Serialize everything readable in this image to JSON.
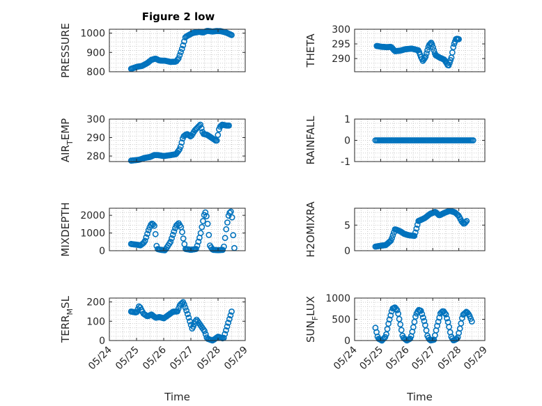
{
  "figure_title": "Figure 2 low",
  "colors": {
    "marker": "#0072BD",
    "grid": "#c9c9c9",
    "axis": "#262626"
  },
  "chart_data": [
    {
      "type": "scatter",
      "panel": "pressure",
      "ylabel": "PRESSURE",
      "xlabel": "",
      "xlim": [
        0,
        5
      ],
      "ylim": [
        800,
        1020
      ],
      "yticks": [
        800,
        900,
        1000
      ],
      "ytick_labels": [
        "800",
        "900",
        "1000"
      ],
      "grid": true,
      "x_tick_labels_shown": false,
      "keypoints": [
        [
          0.8,
          815
        ],
        [
          1.0,
          825
        ],
        [
          1.2,
          830
        ],
        [
          1.4,
          845
        ],
        [
          1.55,
          862
        ],
        [
          1.7,
          868
        ],
        [
          1.85,
          858
        ],
        [
          2.05,
          857
        ],
        [
          2.25,
          851
        ],
        [
          2.45,
          852
        ],
        [
          2.55,
          870
        ],
        [
          2.7,
          930
        ],
        [
          2.8,
          980
        ],
        [
          3.05,
          1000
        ],
        [
          3.3,
          1007
        ],
        [
          3.45,
          1003
        ],
        [
          3.6,
          1012
        ],
        [
          3.8,
          1008
        ],
        [
          3.95,
          1011
        ],
        [
          4.1,
          1010
        ],
        [
          4.3,
          1003
        ],
        [
          4.5,
          990
        ]
      ]
    },
    {
      "type": "scatter",
      "panel": "theta",
      "ylabel": "THETA",
      "xlabel": "",
      "xlim": [
        0,
        5
      ],
      "ylim": [
        285.5,
        300
      ],
      "yticks": [
        290,
        295,
        300
      ],
      "ytick_labels": [
        "290",
        "295",
        "300"
      ],
      "grid": true,
      "x_tick_labels_shown": false,
      "keypoints": [
        [
          0.85,
          294.3
        ],
        [
          1.05,
          294.0
        ],
        [
          1.25,
          293.9
        ],
        [
          1.4,
          294.0
        ],
        [
          1.55,
          292.5
        ],
        [
          1.75,
          292.7
        ],
        [
          1.95,
          293.2
        ],
        [
          2.2,
          293.4
        ],
        [
          2.45,
          292.8
        ],
        [
          2.55,
          290.5
        ],
        [
          2.62,
          289.2
        ],
        [
          2.72,
          290.5
        ],
        [
          2.85,
          294.5
        ],
        [
          2.95,
          295.5
        ],
        [
          3.1,
          291.2
        ],
        [
          3.25,
          290.4
        ],
        [
          3.45,
          289.6
        ],
        [
          3.6,
          287.4
        ],
        [
          3.72,
          290.4
        ],
        [
          3.8,
          294.5
        ],
        [
          3.9,
          296.8
        ],
        [
          4.0,
          296.6
        ]
      ]
    },
    {
      "type": "scatter",
      "panel": "air_temp",
      "ylabel": "AIR_TEMP",
      "xlabel": "",
      "xlim": [
        0,
        5
      ],
      "ylim": [
        277,
        300
      ],
      "yticks": [
        280,
        290,
        300
      ],
      "ytick_labels": [
        "280",
        "290",
        "300"
      ],
      "grid": true,
      "x_tick_labels_shown": false,
      "keypoints": [
        [
          0.8,
          277.5
        ],
        [
          1.1,
          278.0
        ],
        [
          1.3,
          279.0
        ],
        [
          1.5,
          279.5
        ],
        [
          1.65,
          280.5
        ],
        [
          1.8,
          280.5
        ],
        [
          2.0,
          280.0
        ],
        [
          2.25,
          280.5
        ],
        [
          2.45,
          281.0
        ],
        [
          2.6,
          284.0
        ],
        [
          2.72,
          290.5
        ],
        [
          2.85,
          292.0
        ],
        [
          3.0,
          290.5
        ],
        [
          3.15,
          294.0
        ],
        [
          3.35,
          297.0
        ],
        [
          3.45,
          292.0
        ],
        [
          3.6,
          291.5
        ],
        [
          3.75,
          290.0
        ],
        [
          3.95,
          288.0
        ],
        [
          4.05,
          295.5
        ],
        [
          4.15,
          297.0
        ],
        [
          4.3,
          296.5
        ],
        [
          4.4,
          296.5
        ]
      ]
    },
    {
      "type": "scatter",
      "panel": "rainfall",
      "ylabel": "RAINFALL",
      "xlabel": "",
      "xlim": [
        0,
        5
      ],
      "ylim": [
        -1,
        1
      ],
      "yticks": [
        -1,
        0,
        1
      ],
      "ytick_labels": [
        "-1",
        "0",
        "1"
      ],
      "grid": true,
      "x_tick_labels_shown": false,
      "keypoints": [
        [
          0.8,
          0
        ],
        [
          4.55,
          0
        ]
      ]
    },
    {
      "type": "scatter",
      "panel": "mixdepth",
      "ylabel": "MIXDEPTH",
      "xlabel": "",
      "xlim": [
        0,
        5
      ],
      "ylim": [
        0,
        2400
      ],
      "yticks": [
        0,
        1000,
        2000
      ],
      "ytick_labels": [
        "0",
        "1000",
        "2000"
      ],
      "grid": true,
      "x_tick_labels_shown": false,
      "keypoints": [
        [
          0.8,
          380
        ],
        [
          1.0,
          340
        ],
        [
          1.15,
          300
        ],
        [
          1.3,
          500
        ],
        [
          1.45,
          1200
        ],
        [
          1.55,
          1550
        ],
        [
          1.65,
          1450
        ],
        [
          1.7,
          900
        ],
        [
          1.75,
          100
        ],
        [
          1.9,
          50
        ],
        [
          2.05,
          20
        ],
        [
          2.25,
          500
        ],
        [
          2.45,
          1400
        ],
        [
          2.55,
          1550
        ],
        [
          2.65,
          1300
        ],
        [
          2.72,
          700
        ],
        [
          2.8,
          100
        ],
        [
          3.0,
          50
        ],
        [
          3.2,
          100
        ],
        [
          3.35,
          900
        ],
        [
          3.5,
          2100
        ],
        [
          3.55,
          2200
        ],
        [
          3.62,
          1500
        ],
        [
          3.7,
          300
        ],
        [
          3.8,
          50
        ],
        [
          4.0,
          30
        ],
        [
          4.2,
          50
        ],
        [
          4.3,
          1200
        ],
        [
          4.4,
          2100
        ],
        [
          4.5,
          2250
        ],
        [
          4.55,
          1000
        ],
        [
          4.6,
          150
        ]
      ]
    },
    {
      "type": "scatter",
      "panel": "h2omixra",
      "ylabel": "H2OMIXRA",
      "xlabel": "",
      "xlim": [
        0,
        5
      ],
      "ylim": [
        0,
        8.3
      ],
      "yticks": [
        0,
        5
      ],
      "ytick_labels": [
        "0",
        "5"
      ],
      "grid": true,
      "x_tick_labels_shown": false,
      "keypoints": [
        [
          0.8,
          0.8
        ],
        [
          1.05,
          1.0
        ],
        [
          1.2,
          1.1
        ],
        [
          1.4,
          2.0
        ],
        [
          1.55,
          4.2
        ],
        [
          1.75,
          3.8
        ],
        [
          1.9,
          3.3
        ],
        [
          2.1,
          3.0
        ],
        [
          2.3,
          2.9
        ],
        [
          2.45,
          5.8
        ],
        [
          2.7,
          6.4
        ],
        [
          2.9,
          7.2
        ],
        [
          3.1,
          7.6
        ],
        [
          3.25,
          6.9
        ],
        [
          3.45,
          7.4
        ],
        [
          3.65,
          7.8
        ],
        [
          3.85,
          7.5
        ],
        [
          4.0,
          6.8
        ],
        [
          4.1,
          5.8
        ],
        [
          4.2,
          5.2
        ],
        [
          4.3,
          5.8
        ]
      ]
    },
    {
      "type": "scatter",
      "panel": "terr_msl",
      "ylabel": "TERR_MSL",
      "xlabel": "Time",
      "xlim": [
        0,
        5
      ],
      "ylim": [
        0,
        220
      ],
      "yticks": [
        0,
        100,
        200
      ],
      "ytick_labels": [
        "0",
        "100",
        "200"
      ],
      "x_tick_labels": [
        "05/24",
        "05/25",
        "05/26",
        "05/27",
        "05/28",
        "05/29"
      ],
      "grid": true,
      "keypoints": [
        [
          0.8,
          150
        ],
        [
          1.0,
          145
        ],
        [
          1.1,
          180
        ],
        [
          1.25,
          140
        ],
        [
          1.4,
          125
        ],
        [
          1.55,
          135
        ],
        [
          1.7,
          118
        ],
        [
          1.85,
          122
        ],
        [
          2.0,
          115
        ],
        [
          2.15,
          130
        ],
        [
          2.35,
          150
        ],
        [
          2.5,
          150
        ],
        [
          2.6,
          185
        ],
        [
          2.72,
          200
        ],
        [
          2.85,
          150
        ],
        [
          3.05,
          60
        ],
        [
          3.2,
          110
        ],
        [
          3.35,
          80
        ],
        [
          3.5,
          50
        ],
        [
          3.6,
          10
        ],
        [
          3.8,
          0
        ],
        [
          4.0,
          20
        ],
        [
          4.2,
          10
        ],
        [
          4.35,
          80
        ],
        [
          4.5,
          150
        ]
      ]
    },
    {
      "type": "scatter",
      "panel": "sun_flux",
      "ylabel": "SUN_FLUX",
      "xlabel": "Time",
      "xlim": [
        0,
        5
      ],
      "ylim": [
        0,
        1000
      ],
      "yticks": [
        0,
        500,
        1000
      ],
      "ytick_labels": [
        "0",
        "500",
        "1000"
      ],
      "x_tick_labels": [
        "05/24",
        "05/25",
        "05/26",
        "05/27",
        "05/28",
        "05/29"
      ],
      "grid": true,
      "keypoints": [
        [
          0.8,
          300
        ],
        [
          0.9,
          50
        ],
        [
          1.05,
          0
        ],
        [
          1.2,
          100
        ],
        [
          1.3,
          400
        ],
        [
          1.45,
          750
        ],
        [
          1.55,
          780
        ],
        [
          1.65,
          700
        ],
        [
          1.75,
          400
        ],
        [
          1.85,
          80
        ],
        [
          2.0,
          0
        ],
        [
          2.15,
          50
        ],
        [
          2.25,
          300
        ],
        [
          2.35,
          600
        ],
        [
          2.45,
          720
        ],
        [
          2.55,
          700
        ],
        [
          2.7,
          400
        ],
        [
          2.8,
          100
        ],
        [
          2.9,
          0
        ],
        [
          3.05,
          20
        ],
        [
          3.15,
          300
        ],
        [
          3.3,
          650
        ],
        [
          3.4,
          700
        ],
        [
          3.5,
          620
        ],
        [
          3.6,
          400
        ],
        [
          3.7,
          100
        ],
        [
          3.8,
          0
        ],
        [
          3.95,
          50
        ],
        [
          4.05,
          300
        ],
        [
          4.15,
          600
        ],
        [
          4.3,
          680
        ],
        [
          4.4,
          600
        ],
        [
          4.5,
          450
        ]
      ]
    }
  ]
}
